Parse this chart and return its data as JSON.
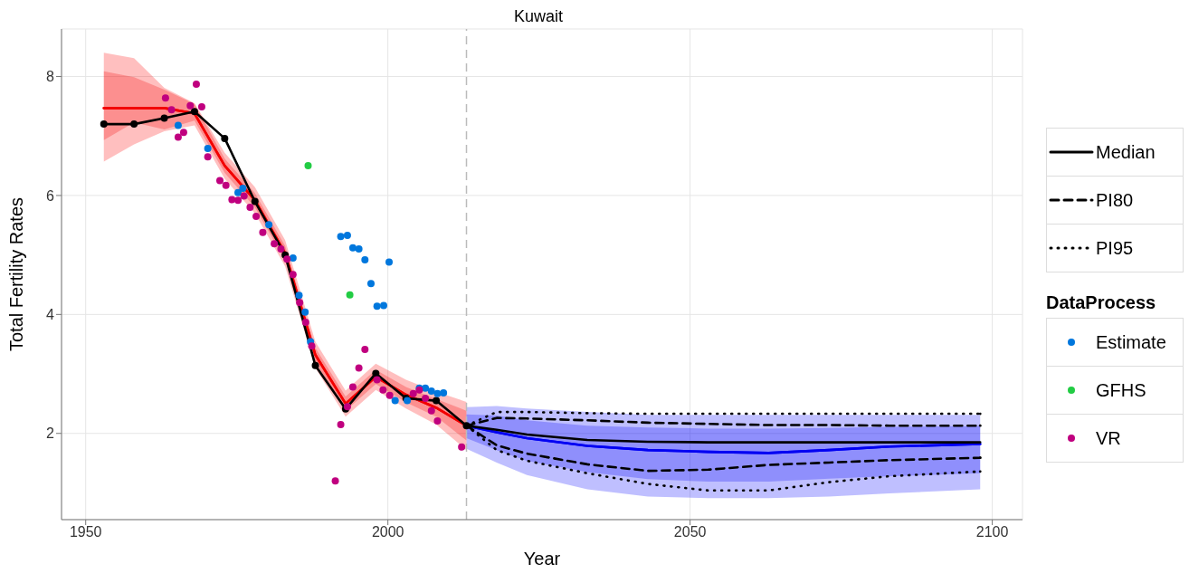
{
  "chart_data": {
    "type": "line",
    "title": "Kuwait",
    "xlabel": "Year",
    "ylabel": "Total Fertility Rates",
    "legend_title": "DataProcess",
    "legend": "right",
    "grid": true,
    "xlim": [
      1946,
      2105
    ],
    "xticks": [
      1950,
      2000,
      2050,
      2100
    ],
    "ylim": [
      0.55,
      8.8
    ],
    "yticks": [
      2,
      4,
      6,
      8
    ],
    "ref_lines": [
      {
        "axis": "x",
        "value": 2013,
        "color": "#bbbbbb",
        "line_style": "dashed"
      }
    ],
    "series": [
      {
        "type": "line",
        "color": "#ff0000",
        "line_style": "solid",
        "x": [
          1953,
          1958,
          1963,
          1968,
          1973,
          1978,
          1983,
          1988,
          1993,
          1998,
          2003,
          2008,
          2013
        ],
        "values": [
          7.47,
          7.47,
          7.47,
          7.38,
          6.5,
          5.92,
          5.03,
          3.32,
          2.5,
          2.95,
          2.65,
          2.43,
          2.13
        ],
        "lower": [
          6.57,
          6.86,
          7.08,
          7.18,
          6.28,
          5.7,
          4.81,
          3.1,
          2.28,
          2.73,
          2.42,
          2.15,
          1.72
        ],
        "upper": [
          8.4,
          8.31,
          7.81,
          7.55,
          6.72,
          6.14,
          5.25,
          3.54,
          2.72,
          3.17,
          2.9,
          2.7,
          2.53
        ]
      },
      {
        "type": "line",
        "color": "#f20000",
        "line_style": "solid",
        "x": [
          1953,
          1958,
          1963,
          1968,
          1973,
          1978,
          1983,
          1988,
          1993,
          1998,
          2003,
          2008,
          2013
        ],
        "values": [
          7.47,
          7.47,
          7.47,
          7.38,
          6.5,
          5.92,
          5.03,
          3.32,
          2.5,
          2.95,
          2.65,
          2.43,
          2.13
        ],
        "lower": [
          6.93,
          7.23,
          7.11,
          7.26,
          6.38,
          5.8,
          4.91,
          3.2,
          2.38,
          2.83,
          2.52,
          2.28,
          1.88
        ],
        "upper": [
          8.09,
          7.99,
          7.78,
          7.54,
          6.62,
          6.04,
          5.15,
          3.44,
          2.62,
          3.07,
          2.78,
          2.58,
          2.38
        ]
      },
      {
        "type": "line",
        "color": "#0000ff",
        "line_style": "solid",
        "x": [
          2013,
          2018,
          2023,
          2033,
          2043,
          2053,
          2063,
          2073,
          2083,
          2098
        ],
        "values": [
          2.13,
          2.02,
          1.92,
          1.79,
          1.72,
          1.69,
          1.67,
          1.72,
          1.78,
          1.82
        ],
        "lower": [
          1.74,
          1.51,
          1.3,
          1.06,
          0.94,
          0.91,
          0.91,
          0.94,
          0.99,
          1.06
        ],
        "upper": [
          2.44,
          2.46,
          2.42,
          2.36,
          2.31,
          2.31,
          2.31,
          2.31,
          2.31,
          2.31
        ]
      },
      {
        "type": "line",
        "color": "#0000f2",
        "line_style": "solid",
        "x": [
          2013,
          2018,
          2023,
          2033,
          2043,
          2053,
          2063,
          2073,
          2083,
          2098
        ],
        "values": [
          2.13,
          2.02,
          1.92,
          1.79,
          1.72,
          1.69,
          1.67,
          1.72,
          1.78,
          1.82
        ],
        "lower": [
          1.92,
          1.72,
          1.54,
          1.35,
          1.23,
          1.19,
          1.19,
          1.24,
          1.28,
          1.33
        ],
        "upper": [
          2.32,
          2.3,
          2.22,
          2.13,
          2.1,
          2.08,
          2.08,
          2.09,
          2.11,
          2.12
        ]
      },
      {
        "type": "line",
        "color": "#000000",
        "line_style": "solid",
        "marker": "circle",
        "x": [
          1953,
          1958,
          1963,
          1968,
          1973,
          1978,
          1983,
          1988,
          1993,
          1998,
          2003,
          2008,
          2013
        ],
        "values": [
          7.2,
          7.2,
          7.3,
          7.41,
          6.96,
          5.9,
          5.0,
          3.14,
          2.41,
          3.01,
          2.59,
          2.55,
          2.13
        ]
      },
      {
        "type": "line",
        "name": "Median",
        "color": "#000000",
        "line_style": "solid",
        "x": [
          2013,
          2018,
          2023,
          2033,
          2043,
          2053,
          2063,
          2073,
          2083,
          2098
        ],
        "values": [
          2.13,
          2.06,
          1.98,
          1.89,
          1.86,
          1.85,
          1.85,
          1.85,
          1.85,
          1.85
        ]
      },
      {
        "type": "line",
        "name": "PI80",
        "color": "#000000",
        "line_style": "dashed",
        "x": [
          2013,
          2018,
          2023,
          2033,
          2043,
          2053,
          2063,
          2073,
          2083,
          2098
        ],
        "values": [
          2.13,
          2.26,
          2.25,
          2.22,
          2.18,
          2.16,
          2.14,
          2.14,
          2.13,
          2.13
        ]
      },
      {
        "type": "line",
        "color": "#000000",
        "line_style": "dashed",
        "x": [
          2013,
          2018,
          2023,
          2033,
          2043,
          2053,
          2063,
          2073,
          2083,
          2098
        ],
        "values": [
          2.13,
          1.8,
          1.66,
          1.48,
          1.37,
          1.39,
          1.47,
          1.51,
          1.55,
          1.59
        ]
      },
      {
        "type": "line",
        "name": "PI95",
        "color": "#000000",
        "line_style": "dotted",
        "x": [
          2013,
          2018,
          2023,
          2033,
          2043,
          2053,
          2063,
          2073,
          2083,
          2098
        ],
        "values": [
          2.13,
          2.36,
          2.36,
          2.34,
          2.33,
          2.33,
          2.33,
          2.33,
          2.33,
          2.33
        ]
      },
      {
        "type": "line",
        "color": "#000000",
        "line_style": "dotted",
        "x": [
          2013,
          2018,
          2023,
          2033,
          2043,
          2053,
          2063,
          2073,
          2083,
          2098
        ],
        "values": [
          2.13,
          1.72,
          1.54,
          1.33,
          1.15,
          1.04,
          1.04,
          1.18,
          1.28,
          1.36
        ]
      },
      {
        "type": "scatter",
        "name": "Estimate",
        "color": "#0077dd",
        "x": [
          1965.3,
          1970.2,
          1975.2,
          1976,
          1980.3,
          1984.3,
          1985.3,
          1986.3,
          1987.2,
          1992.2,
          1993.3,
          1994.2,
          1995.2,
          1996.2,
          2000.2,
          1997.2,
          1998.2,
          1999.3,
          2001.2,
          2003.2,
          2005.2,
          2006.2,
          2007.2,
          2008.2,
          2009.2
        ],
        "values": [
          7.18,
          6.79,
          6.05,
          6.12,
          5.51,
          4.95,
          4.32,
          4.04,
          3.54,
          5.31,
          5.33,
          5.12,
          5.1,
          4.92,
          4.88,
          4.52,
          4.14,
          4.15,
          2.55,
          2.55,
          2.76,
          2.76,
          2.71,
          2.67,
          2.68
        ]
      },
      {
        "type": "scatter",
        "name": "GFHS",
        "color": "#22cc44",
        "x": [
          1986.8,
          1993.7
        ],
        "values": [
          6.5,
          4.33
        ]
      },
      {
        "type": "scatter",
        "name": "VR",
        "color": "#c0007f",
        "x": [
          1963.2,
          1964.2,
          1965.3,
          1966.2,
          1967.3,
          1968.3,
          1969.2,
          1970.2,
          1972.2,
          1973.2,
          1974.2,
          1975.2,
          1976.2,
          1977.2,
          1978.2,
          1979.3,
          1981.2,
          1982.3,
          1983.3,
          1984.3,
          1985.4,
          1986.4,
          1987.4,
          1991.3,
          1992.2,
          1993.3,
          1994.2,
          1995.2,
          1996.2,
          1998.2,
          1999.2,
          2000.3,
          2004.2,
          2005.2,
          2006.2,
          2007.2,
          2008.2,
          2012.2
        ],
        "values": [
          7.64,
          7.44,
          6.98,
          7.06,
          7.51,
          7.87,
          7.49,
          6.65,
          6.25,
          6.17,
          5.93,
          5.92,
          5.99,
          5.8,
          5.65,
          5.38,
          5.19,
          5.1,
          4.93,
          4.67,
          4.2,
          3.87,
          3.47,
          1.2,
          2.15,
          2.45,
          2.78,
          3.1,
          3.41,
          2.9,
          2.73,
          2.64,
          2.67,
          2.73,
          2.59,
          2.38,
          2.21,
          1.77
        ]
      }
    ]
  }
}
